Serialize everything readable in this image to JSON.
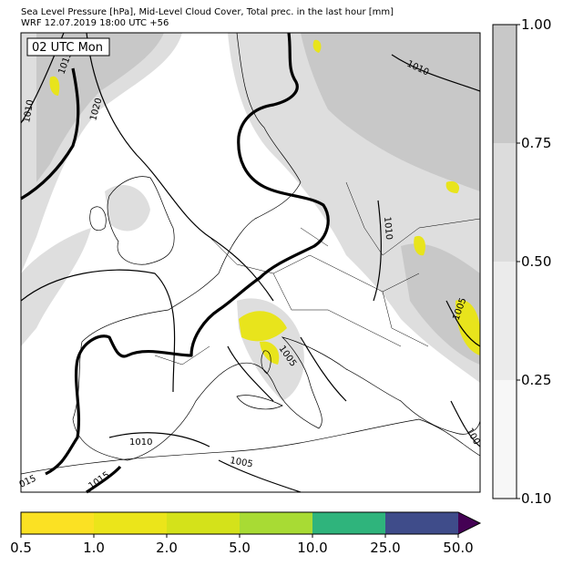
{
  "header": {
    "title": "Sea Level Pressure [hPa], Mid-Level Cloud Cover, Total prec. in the last hour [mm]",
    "subtitle": "WRF 12.07.2019 18:00 UTC +56"
  },
  "map": {
    "time_label": "02 UTC Mon",
    "isobar_labels": [
      "1015",
      "1010",
      "1020",
      "1010",
      "1010",
      "1005",
      "1005",
      "1010",
      "1005",
      "1015",
      "015",
      "100"
    ]
  },
  "cloud_colorbar": {
    "ticks": [
      {
        "value": 0.1,
        "label": "0.10"
      },
      {
        "value": 0.25,
        "label": "0.25"
      },
      {
        "value": 0.5,
        "label": "0.50"
      },
      {
        "value": 0.75,
        "label": "0.75"
      },
      {
        "value": 1,
        "label": "1.00"
      }
    ],
    "colors": [
      "#f7f7f7",
      "#ebebeb",
      "#dcdcdc",
      "#c8c8c8"
    ]
  },
  "precip_colorbar": {
    "ticks": [
      0.5,
      {
        "value": 1,
        "label": "1.0"
      },
      {
        "value": 2,
        "label": "2.0"
      },
      {
        "value": 5,
        "label": "5.0"
      },
      {
        "value": 10,
        "label": "10.0"
      },
      {
        "value": 25,
        "label": "25.0"
      },
      {
        "value": 50,
        "label": "50.0"
      }
    ],
    "colors": [
      "#fbe123",
      "#ebe51a",
      "#d4e21a",
      "#a8db34",
      "#2fb47c",
      "#3f4c8a"
    ],
    "extend_color": "#440154"
  }
}
